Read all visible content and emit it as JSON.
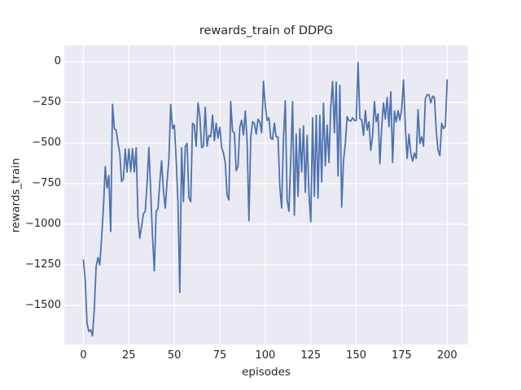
{
  "chart_data": {
    "type": "line",
    "title": "rewards_train of DDPG",
    "xlabel": "episodes",
    "ylabel": "rewards_train",
    "legend": null,
    "grid": true,
    "style": "seaborn-darkgrid",
    "axes_background": "#eaeaf2",
    "grid_color": "#ffffff",
    "line_color": "#4c72b0",
    "text_color": "#262626",
    "xlim": [
      -10.5,
      211.5
    ],
    "ylim": [
      -1740,
      100
    ],
    "xticks": [
      {
        "v": 0,
        "label": "0"
      },
      {
        "v": 25,
        "label": "25"
      },
      {
        "v": 50,
        "label": "50"
      },
      {
        "v": 75,
        "label": "75"
      },
      {
        "v": 100,
        "label": "100"
      },
      {
        "v": 125,
        "label": "125"
      },
      {
        "v": 150,
        "label": "150"
      },
      {
        "v": 175,
        "label": "175"
      },
      {
        "v": 200,
        "label": "200"
      }
    ],
    "yticks": [
      {
        "v": 0,
        "label": "0"
      },
      {
        "v": -250,
        "label": "−250"
      },
      {
        "v": -500,
        "label": "−500"
      },
      {
        "v": -750,
        "label": "−750"
      },
      {
        "v": -1000,
        "label": "−1000"
      },
      {
        "v": -1250,
        "label": "−1250"
      },
      {
        "v": -1500,
        "label": "−1500"
      }
    ],
    "x": [
      0,
      1,
      2,
      3,
      4,
      5,
      6,
      7,
      8,
      9,
      10,
      11,
      12,
      13,
      14,
      15,
      16,
      17,
      18,
      19,
      20,
      21,
      22,
      23,
      24,
      25,
      26,
      27,
      28,
      29,
      30,
      31,
      32,
      33,
      34,
      35,
      36,
      37,
      38,
      39,
      40,
      41,
      42,
      43,
      44,
      45,
      46,
      47,
      48,
      49,
      50,
      51,
      52,
      53,
      54,
      55,
      56,
      57,
      58,
      59,
      60,
      61,
      62,
      63,
      64,
      65,
      66,
      67,
      68,
      69,
      70,
      71,
      72,
      73,
      74,
      75,
      76,
      77,
      78,
      79,
      80,
      81,
      82,
      83,
      84,
      85,
      86,
      87,
      88,
      89,
      90,
      91,
      92,
      93,
      94,
      95,
      96,
      97,
      98,
      99,
      100,
      101,
      102,
      103,
      104,
      105,
      106,
      107,
      108,
      109,
      110,
      111,
      112,
      113,
      114,
      115,
      116,
      117,
      118,
      119,
      120,
      121,
      122,
      123,
      124,
      125,
      126,
      127,
      128,
      129,
      130,
      131,
      132,
      133,
      134,
      135,
      136,
      137,
      138,
      139,
      140,
      141,
      142,
      143,
      144,
      145,
      146,
      147,
      148,
      149,
      150,
      151,
      152,
      153,
      154,
      155,
      156,
      157,
      158,
      159,
      160,
      161,
      162,
      163,
      164,
      165,
      166,
      167,
      168,
      169,
      170,
      171,
      172,
      173,
      174,
      175,
      176,
      177,
      178,
      179,
      180,
      181,
      182,
      183,
      184,
      185,
      186,
      187,
      188,
      189,
      190,
      191,
      192,
      193,
      194,
      195,
      196,
      197,
      198,
      199,
      200
    ],
    "y": [
      -1220,
      -1345,
      -1612,
      -1660,
      -1650,
      -1687,
      -1520,
      -1260,
      -1205,
      -1250,
      -1085,
      -900,
      -645,
      -778,
      -700,
      -1045,
      -262,
      -412,
      -420,
      -500,
      -562,
      -737,
      -720,
      -537,
      -678,
      -537,
      -678,
      -535,
      -678,
      -530,
      -953,
      -1087,
      -1010,
      -937,
      -920,
      -750,
      -528,
      -800,
      -1078,
      -1287,
      -920,
      -905,
      -740,
      -610,
      -795,
      -900,
      -737,
      -600,
      -262,
      -412,
      -390,
      -603,
      -870,
      -1420,
      -530,
      -862,
      -520,
      -503,
      -837,
      -862,
      -378,
      -390,
      -520,
      -253,
      -330,
      -528,
      -520,
      -280,
      -520,
      -453,
      -462,
      -328,
      -487,
      -378,
      -470,
      -403,
      -528,
      -562,
      -620,
      -820,
      -850,
      -245,
      -428,
      -437,
      -670,
      -645,
      -403,
      -360,
      -450,
      -303,
      -487,
      -978,
      -470,
      -370,
      -378,
      -445,
      -353,
      -370,
      -437,
      -120,
      -272,
      -362,
      -345,
      -470,
      -478,
      -378,
      -462,
      -462,
      -770,
      -900,
      -470,
      -240,
      -850,
      -920,
      -600,
      -245,
      -945,
      -445,
      -828,
      -412,
      -678,
      -395,
      -803,
      -453,
      -812,
      -985,
      -345,
      -828,
      -330,
      -840,
      -330,
      -740,
      -255,
      -640,
      -390,
      -620,
      -280,
      -122,
      -437,
      -125,
      -703,
      -145,
      -895,
      -612,
      -503,
      -337,
      -362,
      -365,
      -345,
      -362,
      -362,
      -5,
      -350,
      -357,
      -453,
      -300,
      -420,
      -370,
      -545,
      -453,
      -245,
      -370,
      -320,
      -628,
      -400,
      -253,
      -353,
      -220,
      -400,
      -185,
      -620,
      -303,
      -370,
      -300,
      -360,
      -290,
      -112,
      -400,
      -595,
      -445,
      -562,
      -612,
      -562,
      -595,
      -295,
      -503,
      -462,
      -520,
      -228,
      -203,
      -203,
      -253,
      -212,
      -220,
      -428,
      -545,
      -578,
      -378,
      -412,
      -395,
      -112
    ]
  }
}
